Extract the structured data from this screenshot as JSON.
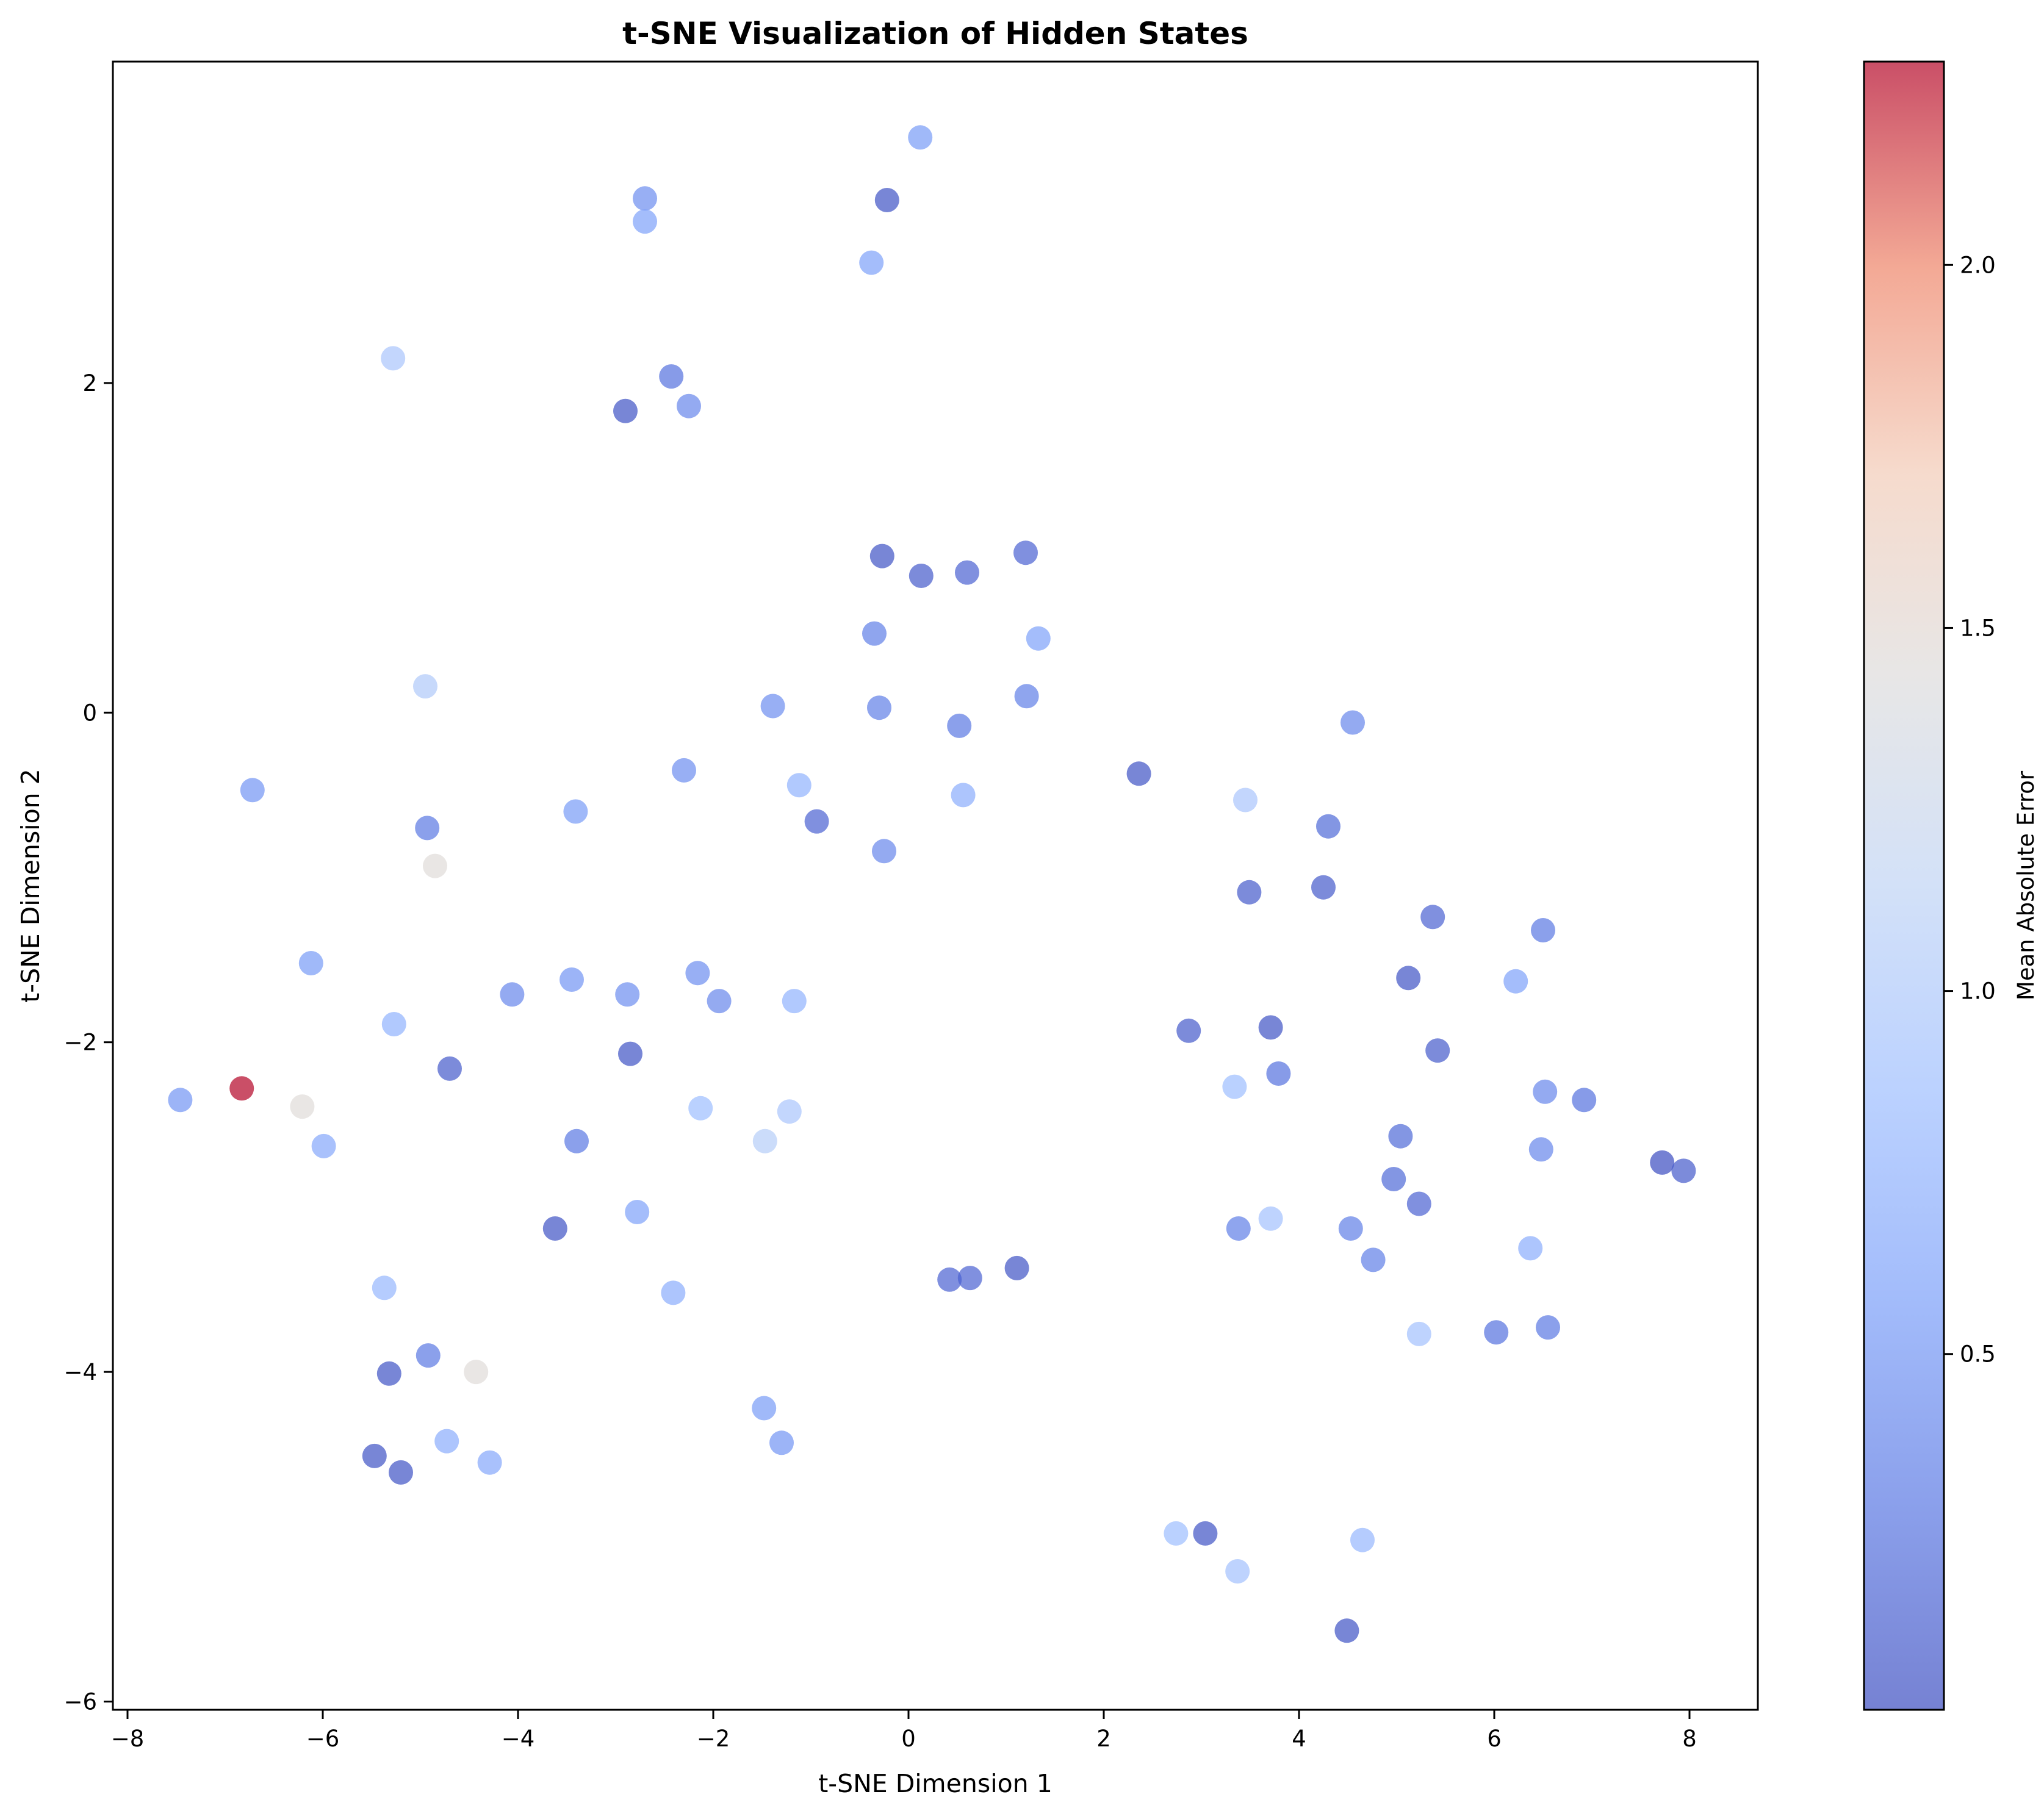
{
  "chart_data": {
    "type": "scatter",
    "title": "t-SNE Visualization of Hidden States",
    "xlabel": "t-SNE Dimension 1",
    "ylabel": "t-SNE Dimension 2",
    "xlim": [
      -8.15,
      8.7
    ],
    "ylim": [
      -6.05,
      3.95
    ],
    "xticks": [
      -8,
      -6,
      -4,
      -2,
      0,
      2,
      4,
      6,
      8
    ],
    "xtick_labels": [
      "−8",
      "−6",
      "−4",
      "−2",
      "0",
      "2",
      "4",
      "6",
      "8"
    ],
    "yticks": [
      -6,
      -4,
      -2,
      0,
      2
    ],
    "ytick_labels": [
      "−6",
      "−4",
      "−2",
      "0",
      "2"
    ],
    "grid": false,
    "colormap": "coolwarm",
    "marker_alpha": 0.7,
    "colorbar": {
      "label": "Mean Absolute Error",
      "range": [
        0.01,
        2.28
      ],
      "ticks": [
        0.5,
        1.0,
        1.5,
        2.0
      ],
      "tick_labels": [
        "0.5",
        "1.0",
        "1.5",
        "2.0"
      ]
    },
    "points": [
      [
        0.12,
        3.49,
        0.55
      ],
      [
        -2.7,
        3.12,
        0.45
      ],
      [
        -0.22,
        3.11,
        0.05
      ],
      [
        -2.7,
        2.98,
        0.6
      ],
      [
        -0.38,
        2.73,
        0.6
      ],
      [
        -5.28,
        2.15,
        0.95
      ],
      [
        -2.43,
        2.04,
        0.25
      ],
      [
        -2.9,
        1.83,
        0.05
      ],
      [
        -2.25,
        1.86,
        0.4
      ],
      [
        -0.27,
        0.95,
        0.05
      ],
      [
        0.13,
        0.83,
        0.1
      ],
      [
        0.6,
        0.85,
        0.15
      ],
      [
        1.2,
        0.97,
        0.15
      ],
      [
        -0.35,
        0.48,
        0.35
      ],
      [
        1.33,
        0.45,
        0.6
      ],
      [
        -4.95,
        0.16,
        1.0
      ],
      [
        -1.39,
        0.04,
        0.45
      ],
      [
        -0.3,
        0.03,
        0.35
      ],
      [
        0.52,
        -0.08,
        0.3
      ],
      [
        1.21,
        0.1,
        0.35
      ],
      [
        4.55,
        -0.06,
        0.4
      ],
      [
        -6.72,
        -0.47,
        0.5
      ],
      [
        -2.3,
        -0.35,
        0.45
      ],
      [
        -1.12,
        -0.44,
        0.75
      ],
      [
        0.56,
        -0.5,
        0.7
      ],
      [
        2.36,
        -0.37,
        0.05
      ],
      [
        3.45,
        -0.53,
        0.95
      ],
      [
        -4.93,
        -0.7,
        0.3
      ],
      [
        -3.41,
        -0.6,
        0.55
      ],
      [
        -0.94,
        -0.66,
        0.15
      ],
      [
        -0.25,
        -0.84,
        0.4
      ],
      [
        4.3,
        -0.69,
        0.2
      ],
      [
        -4.85,
        -0.93,
        1.45
      ],
      [
        3.49,
        -1.09,
        0.1
      ],
      [
        4.25,
        -1.06,
        0.1
      ],
      [
        5.37,
        -1.24,
        0.15
      ],
      [
        6.5,
        -1.32,
        0.3
      ],
      [
        -6.12,
        -1.52,
        0.55
      ],
      [
        -2.16,
        -1.58,
        0.45
      ],
      [
        -3.45,
        -1.62,
        0.5
      ],
      [
        5.12,
        -1.61,
        0.05
      ],
      [
        6.22,
        -1.63,
        0.6
      ],
      [
        -4.06,
        -1.71,
        0.4
      ],
      [
        -2.88,
        -1.71,
        0.45
      ],
      [
        -1.94,
        -1.75,
        0.4
      ],
      [
        -1.17,
        -1.75,
        0.75
      ],
      [
        -5.27,
        -1.89,
        0.75
      ],
      [
        2.87,
        -1.93,
        0.1
      ],
      [
        3.71,
        -1.91,
        0.05
      ],
      [
        -4.7,
        -2.16,
        0.1
      ],
      [
        -2.85,
        -2.07,
        0.05
      ],
      [
        5.42,
        -2.05,
        0.1
      ],
      [
        3.79,
        -2.19,
        0.25
      ],
      [
        -6.83,
        -2.28,
        2.28
      ],
      [
        -7.46,
        -2.35,
        0.5
      ],
      [
        -6.21,
        -2.39,
        1.45
      ],
      [
        -2.13,
        -2.4,
        0.85
      ],
      [
        -1.22,
        -2.42,
        0.95
      ],
      [
        3.34,
        -2.27,
        0.85
      ],
      [
        6.52,
        -2.3,
        0.4
      ],
      [
        6.92,
        -2.35,
        0.25
      ],
      [
        -5.99,
        -2.63,
        0.65
      ],
      [
        -3.4,
        -2.6,
        0.3
      ],
      [
        -1.47,
        -2.6,
        1.05
      ],
      [
        5.04,
        -2.57,
        0.2
      ],
      [
        6.48,
        -2.65,
        0.4
      ],
      [
        7.72,
        -2.73,
        0.01
      ],
      [
        7.94,
        -2.78,
        0.1
      ],
      [
        4.97,
        -2.83,
        0.2
      ],
      [
        5.23,
        -2.98,
        0.15
      ],
      [
        -2.78,
        -3.03,
        0.6
      ],
      [
        3.71,
        -3.07,
        0.9
      ],
      [
        -3.62,
        -3.13,
        0.05
      ],
      [
        3.38,
        -3.13,
        0.35
      ],
      [
        4.53,
        -3.13,
        0.35
      ],
      [
        6.37,
        -3.25,
        0.7
      ],
      [
        4.76,
        -3.32,
        0.35
      ],
      [
        1.11,
        -3.37,
        0.05
      ],
      [
        0.42,
        -3.44,
        0.15
      ],
      [
        0.63,
        -3.43,
        0.15
      ],
      [
        -5.37,
        -3.49,
        0.8
      ],
      [
        -2.41,
        -3.52,
        0.7
      ],
      [
        5.23,
        -3.77,
        0.9
      ],
      [
        6.02,
        -3.76,
        0.25
      ],
      [
        6.55,
        -3.73,
        0.3
      ],
      [
        -4.92,
        -3.9,
        0.3
      ],
      [
        -5.32,
        -4.01,
        0.05
      ],
      [
        -4.43,
        -4.0,
        1.45
      ],
      [
        -1.48,
        -4.22,
        0.55
      ],
      [
        -1.3,
        -4.43,
        0.5
      ],
      [
        -4.73,
        -4.42,
        0.7
      ],
      [
        -4.29,
        -4.55,
        0.65
      ],
      [
        -5.47,
        -4.51,
        0.05
      ],
      [
        -5.2,
        -4.61,
        0.05
      ],
      [
        2.74,
        -4.98,
        0.85
      ],
      [
        3.04,
        -4.98,
        0.05
      ],
      [
        4.65,
        -5.02,
        0.8
      ],
      [
        3.37,
        -5.21,
        0.9
      ],
      [
        4.49,
        -5.57,
        0.05
      ]
    ]
  }
}
